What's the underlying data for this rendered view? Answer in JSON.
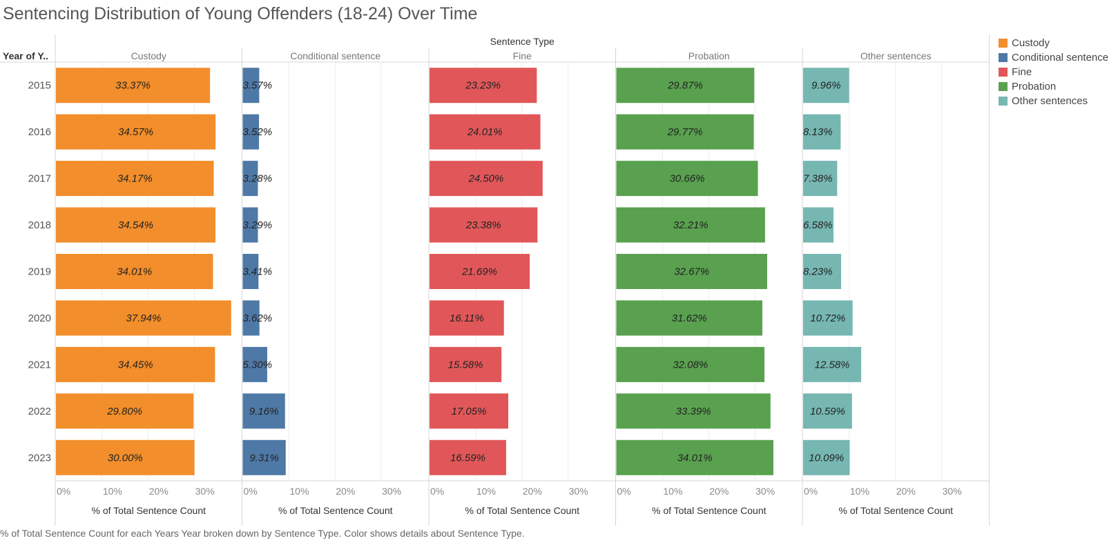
{
  "title": "Sentencing Distribution of Young Offenders  (18-24) Over Time",
  "caption": "% of Total Sentence Count for each Years Year broken down by Sentence Type.  Color shows details about Sentence Type.",
  "chart_data": {
    "type": "bar",
    "orientation": "horizontal",
    "column_header": "Sentence Type",
    "row_header": "Year of Y..",
    "categories": [
      "2015",
      "2016",
      "2017",
      "2018",
      "2019",
      "2020",
      "2021",
      "2022",
      "2023"
    ],
    "xlabel": "% of Total Sentence Count",
    "xlim": [
      0,
      40
    ],
    "xticks": [
      "0%",
      "10%",
      "20%",
      "30%"
    ],
    "xtick_values": [
      0,
      10,
      20,
      30
    ],
    "series": [
      {
        "name": "Custody",
        "color": "#f28e2b",
        "values": [
          33.37,
          34.57,
          34.17,
          34.54,
          34.01,
          37.94,
          34.45,
          29.8,
          30.0
        ],
        "labels": [
          "33.37%",
          "34.57%",
          "34.17%",
          "34.54%",
          "34.01%",
          "37.94%",
          "34.45%",
          "29.80%",
          "30.00%"
        ]
      },
      {
        "name": "Conditional sentence",
        "color": "#4e79a7",
        "values": [
          3.57,
          3.52,
          3.28,
          3.29,
          3.41,
          3.62,
          5.3,
          9.16,
          9.31
        ],
        "labels": [
          "3.57%",
          "3.52%",
          "3.28%",
          "3.29%",
          "3.41%",
          "3.62%",
          "5.30%",
          "9.16%",
          "9.31%"
        ]
      },
      {
        "name": "Fine",
        "color": "#e15759",
        "values": [
          23.23,
          24.01,
          24.5,
          23.38,
          21.69,
          16.11,
          15.58,
          17.05,
          16.59
        ],
        "labels": [
          "23.23%",
          "24.01%",
          "24.50%",
          "23.38%",
          "21.69%",
          "16.11%",
          "15.58%",
          "17.05%",
          "16.59%"
        ]
      },
      {
        "name": "Probation",
        "color": "#59a14f",
        "values": [
          29.87,
          29.77,
          30.66,
          32.21,
          32.67,
          31.62,
          32.08,
          33.39,
          34.01
        ],
        "labels": [
          "29.87%",
          "29.77%",
          "30.66%",
          "32.21%",
          "32.67%",
          "31.62%",
          "32.08%",
          "33.39%",
          "34.01%"
        ]
      },
      {
        "name": "Other sentences",
        "color": "#76b7b2",
        "values": [
          9.96,
          8.13,
          7.38,
          6.58,
          8.23,
          10.72,
          12.58,
          10.59,
          10.09
        ],
        "labels": [
          "9.96%",
          "8.13%",
          "7.38%",
          "6.58%",
          "8.23%",
          "10.72%",
          "12.58%",
          "10.59%",
          "10.09%"
        ]
      }
    ],
    "legend": "right",
    "grid": true
  }
}
